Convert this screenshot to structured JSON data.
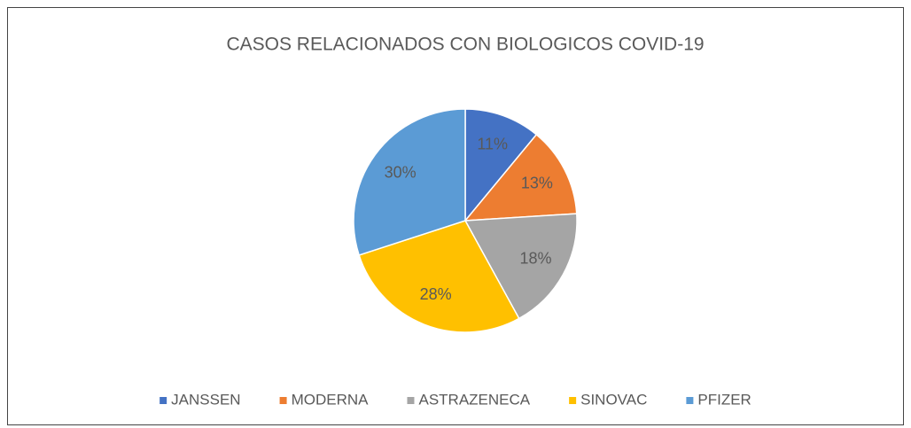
{
  "chart_data": {
    "type": "pie",
    "title": "CASOS RELACIONADOS CON BIOLOGICOS COVID-19",
    "categories": [
      "JANSSEN",
      "MODERNA",
      "ASTRAZENECA",
      "SINOVAC",
      "PFIZER"
    ],
    "values": [
      11,
      13,
      18,
      28,
      30
    ],
    "value_labels": [
      "11%",
      "13%",
      "18%",
      "28%",
      "30%"
    ],
    "colors": [
      "#4472c4",
      "#ed7d31",
      "#a5a5a5",
      "#ffc000",
      "#5b9bd5"
    ],
    "legend": "bottom"
  }
}
